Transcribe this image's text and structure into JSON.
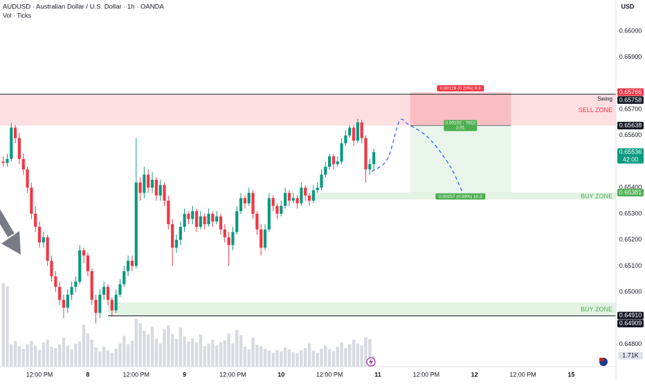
{
  "chart_data": {
    "type": "candlestick",
    "title": "AUDUSD · Australian Dollar / U.S. Dollar · 1h · OANDA",
    "subtitle": "Vol · Ticks",
    "currency": "USD",
    "up_color": "#089981",
    "down_color": "#f23645",
    "xlim": [
      -0.8,
      152.1
    ],
    "xticks": [
      {
        "value": 9,
        "label": "12:00 PM"
      },
      {
        "value": 21,
        "label": "8"
      },
      {
        "value": 33,
        "label": "12:00 PM"
      },
      {
        "value": 45,
        "label": "9"
      },
      {
        "value": 57,
        "label": "12:00 PM"
      },
      {
        "value": 69,
        "label": "10"
      },
      {
        "value": 81,
        "label": "12:00 PM"
      },
      {
        "value": 93,
        "label": "11"
      },
      {
        "value": 105,
        "label": "12:00 PM"
      },
      {
        "value": 117,
        "label": "12"
      },
      {
        "value": 129,
        "label": "12:00 PM"
      },
      {
        "value": 141,
        "label": "15"
      }
    ],
    "ylim": [
      0.64714,
      0.66119
    ],
    "yticks": [
      {
        "value": 0.66,
        "label": "0.66000"
      },
      {
        "value": 0.659,
        "label": "0.65900"
      },
      {
        "value": 0.657,
        "label": "0.65700"
      },
      {
        "value": 0.656,
        "label": "0.65600"
      },
      {
        "value": 0.654,
        "label": "0.65400"
      },
      {
        "value": 0.653,
        "label": "0.65300"
      },
      {
        "value": 0.652,
        "label": "0.65200"
      },
      {
        "value": 0.651,
        "label": "0.65100"
      },
      {
        "value": 0.65,
        "label": "0.65000"
      },
      {
        "value": 0.648,
        "label": "0.64800"
      }
    ],
    "grid": false,
    "candles": [
      [
        0.655,
        0.6552,
        0.6548,
        0.65495
      ],
      [
        0.65495,
        0.6553,
        0.6548,
        0.6551
      ],
      [
        0.6551,
        0.65648,
        0.655,
        0.6563
      ],
      [
        0.6563,
        0.6564,
        0.6557,
        0.6559
      ],
      [
        0.6559,
        0.6561,
        0.6549,
        0.6551
      ],
      [
        0.6551,
        0.6553,
        0.6545,
        0.6547
      ],
      [
        0.6547,
        0.6548,
        0.6538,
        0.654
      ],
      [
        0.654,
        0.6542,
        0.6528,
        0.653
      ],
      [
        0.653,
        0.6533,
        0.6523,
        0.6525
      ],
      [
        0.6525,
        0.6527,
        0.6517,
        0.6519
      ],
      [
        0.6519,
        0.6523,
        0.6517,
        0.6521
      ],
      [
        0.6521,
        0.6522,
        0.651,
        0.6512
      ],
      [
        0.6512,
        0.6514,
        0.6504,
        0.6506
      ],
      [
        0.6506,
        0.6508,
        0.65,
        0.6502
      ],
      [
        0.6502,
        0.6504,
        0.6495,
        0.6497
      ],
      [
        0.6497,
        0.6499,
        0.649,
        0.6494
      ],
      [
        0.6494,
        0.6501,
        0.6492,
        0.6499
      ],
      [
        0.6499,
        0.6504,
        0.6497,
        0.6502
      ],
      [
        0.6502,
        0.6506,
        0.65,
        0.6504
      ],
      [
        0.6504,
        0.6518,
        0.6503,
        0.6516
      ],
      [
        0.6516,
        0.6517,
        0.6511,
        0.6514
      ],
      [
        0.6514,
        0.6515,
        0.6506,
        0.6508
      ],
      [
        0.6508,
        0.6509,
        0.6495,
        0.6497
      ],
      [
        0.6497,
        0.6499,
        0.6488,
        0.6492
      ],
      [
        0.6492,
        0.6501,
        0.649,
        0.6499
      ],
      [
        0.6499,
        0.6504,
        0.6497,
        0.6502
      ],
      [
        0.6502,
        0.6503,
        0.6495,
        0.6497
      ],
      [
        0.6497,
        0.6498,
        0.64905,
        0.6493
      ],
      [
        0.6493,
        0.6501,
        0.6492,
        0.6499
      ],
      [
        0.6499,
        0.6505,
        0.6498,
        0.6503
      ],
      [
        0.6503,
        0.651,
        0.6502,
        0.6508
      ],
      [
        0.6508,
        0.6514,
        0.6506,
        0.6512
      ],
      [
        0.6512,
        0.6514,
        0.6508,
        0.651
      ],
      [
        0.651,
        0.6559,
        0.6509,
        0.6542
      ],
      [
        0.6542,
        0.6544,
        0.6535,
        0.6538
      ],
      [
        0.6538,
        0.6548,
        0.6536,
        0.6545
      ],
      [
        0.6545,
        0.6547,
        0.6538,
        0.654
      ],
      [
        0.654,
        0.6546,
        0.6538,
        0.6543
      ],
      [
        0.6543,
        0.6544,
        0.6535,
        0.6537
      ],
      [
        0.6537,
        0.6543,
        0.6535,
        0.6541
      ],
      [
        0.6541,
        0.6542,
        0.6533,
        0.6535
      ],
      [
        0.6535,
        0.6537,
        0.6524,
        0.6526
      ],
      [
        0.6526,
        0.6528,
        0.651,
        0.6517
      ],
      [
        0.6517,
        0.6522,
        0.6515,
        0.652
      ],
      [
        0.652,
        0.6527,
        0.6518,
        0.6525
      ],
      [
        0.6525,
        0.6532,
        0.6523,
        0.653
      ],
      [
        0.653,
        0.6531,
        0.6526,
        0.6528
      ],
      [
        0.6528,
        0.6533,
        0.6526,
        0.6531
      ],
      [
        0.6531,
        0.6532,
        0.6523,
        0.6525
      ],
      [
        0.6525,
        0.6531,
        0.6524,
        0.6529
      ],
      [
        0.6529,
        0.653,
        0.6524,
        0.6526
      ],
      [
        0.6526,
        0.6532,
        0.6525,
        0.653
      ],
      [
        0.653,
        0.6531,
        0.6525,
        0.6527
      ],
      [
        0.6527,
        0.6531,
        0.6526,
        0.6529
      ],
      [
        0.6529,
        0.653,
        0.6522,
        0.6524
      ],
      [
        0.6524,
        0.6526,
        0.6519,
        0.6521
      ],
      [
        0.6521,
        0.6523,
        0.651,
        0.6518
      ],
      [
        0.6518,
        0.6525,
        0.6516,
        0.6523
      ],
      [
        0.6523,
        0.6533,
        0.6522,
        0.6531
      ],
      [
        0.6531,
        0.6538,
        0.653,
        0.6536
      ],
      [
        0.6536,
        0.6537,
        0.6532,
        0.6534
      ],
      [
        0.6534,
        0.654,
        0.6533,
        0.6538
      ],
      [
        0.6538,
        0.6539,
        0.6528,
        0.653
      ],
      [
        0.653,
        0.6531,
        0.6522,
        0.6524
      ],
      [
        0.6524,
        0.6526,
        0.6514,
        0.6517
      ],
      [
        0.6517,
        0.6526,
        0.6516,
        0.6524
      ],
      [
        0.6524,
        0.6538,
        0.6523,
        0.6536
      ],
      [
        0.6536,
        0.6537,
        0.6531,
        0.6533
      ],
      [
        0.6533,
        0.6534,
        0.6528,
        0.653
      ],
      [
        0.653,
        0.6535,
        0.6529,
        0.6533
      ],
      [
        0.6533,
        0.654,
        0.6532,
        0.6538
      ],
      [
        0.6538,
        0.6539,
        0.6533,
        0.6535
      ],
      [
        0.6535,
        0.6538,
        0.6534,
        0.6536
      ],
      [
        0.6536,
        0.6537,
        0.6532,
        0.6534
      ],
      [
        0.6534,
        0.6542,
        0.6533,
        0.654
      ],
      [
        0.654,
        0.6541,
        0.6535,
        0.6537
      ],
      [
        0.6537,
        0.6538,
        0.6533,
        0.6535
      ],
      [
        0.6535,
        0.6541,
        0.6534,
        0.6539
      ],
      [
        0.6539,
        0.6542,
        0.6538,
        0.654
      ],
      [
        0.654,
        0.6547,
        0.6539,
        0.6545
      ],
      [
        0.6545,
        0.655,
        0.6544,
        0.6548
      ],
      [
        0.6548,
        0.6553,
        0.6547,
        0.6552
      ],
      [
        0.6552,
        0.6553,
        0.6547,
        0.6549
      ],
      [
        0.6549,
        0.6552,
        0.6548,
        0.655
      ],
      [
        0.655,
        0.6559,
        0.6549,
        0.6557
      ],
      [
        0.6557,
        0.6562,
        0.6556,
        0.656
      ],
      [
        0.656,
        0.6564,
        0.6559,
        0.6563
      ],
      [
        0.6563,
        0.6564,
        0.6556,
        0.6558
      ],
      [
        0.6558,
        0.65663,
        0.6557,
        0.6565
      ],
      [
        0.6565,
        0.6566,
        0.6557,
        0.6559
      ],
      [
        0.6559,
        0.656,
        0.6542,
        0.6547
      ],
      [
        0.6547,
        0.6551,
        0.6545,
        0.6549
      ],
      [
        0.6549,
        0.6555,
        0.6547,
        0.65536
      ]
    ],
    "volume": {
      "color": "#d1d4dc",
      "ylim": [
        0,
        14000
      ],
      "values": [
        13000,
        12500,
        3500,
        4000,
        3200,
        2800,
        3500,
        4000,
        3300,
        2600,
        3800,
        4200,
        3100,
        2900,
        3500,
        4500,
        3300,
        2700,
        3600,
        3900,
        6500,
        5200,
        4200,
        3000,
        2400,
        3100,
        2500,
        2200,
        2800,
        3600,
        4800,
        3500,
        4000,
        7400,
        6800,
        5600,
        5000,
        6200,
        4400,
        3600,
        5800,
        6400,
        5100,
        4300,
        6100,
        4700,
        3900,
        4400,
        3800,
        5000,
        3200,
        3600,
        4200,
        3300,
        3800,
        4100,
        5200,
        3600,
        5700,
        4900,
        3100,
        2700,
        4500,
        3400,
        3200,
        2800,
        2500,
        2200,
        2600,
        2400,
        3000,
        2700,
        2300,
        2100,
        2600,
        2900,
        3600,
        2500,
        2200,
        2800,
        3300,
        2700,
        2400,
        3100,
        3800,
        2900,
        3500,
        4200,
        3600,
        3300,
        4600,
        4300,
        1710
      ],
      "value_labels": {
        "92": "1.71K"
      }
    },
    "price_labels": [
      {
        "value": 0.65766,
        "label": "0.65766",
        "color": "#f23645"
      },
      {
        "value": 0.65758,
        "label": "0.65758",
        "color": "#131722"
      },
      {
        "value": 0.65638,
        "label": "0.65638",
        "color": "#131722"
      },
      {
        "value": 0.65536,
        "label": "0.65536",
        "color": "#089981",
        "countdown": "42:00"
      },
      {
        "value": 0.65381,
        "label": "0.65381",
        "color": "#4caf50"
      },
      {
        "value": 0.6491,
        "label": "0.64910",
        "color": "#131722"
      },
      {
        "value": 0.64909,
        "label": "0.64909",
        "color": "#131722"
      }
    ],
    "swing": {
      "label": "Swing",
      "value": 0.65758
    },
    "sell_zone": {
      "label": "SELL ZONE",
      "top": 0.65758,
      "bottom": 0.65638,
      "color": "#f23645"
    },
    "buy_zones": [
      {
        "label": "BUY ZONE",
        "top": 0.65381,
        "bottom": 0.65355,
        "start": 77,
        "color": "#4caf50"
      },
      {
        "label": "BUY ZONE",
        "top": 0.6496,
        "bottom": 0.64909,
        "start": 26,
        "color": "#4caf50"
      }
    ],
    "position": {
      "start": 101,
      "end": 126,
      "entry": 0.65638,
      "stop": 0.65766,
      "target": 0.65381,
      "stop_label": "0.00128 (0.20%) 9.9",
      "entry_label": "0.00102 - 7812",
      "ratio_label": "2.01",
      "target_label": "0.00257 (0.39%) 10.2"
    },
    "projection": {
      "color": "#2962ff",
      "x": [
        91.5,
        95.4,
        98.3,
        100.6,
        105.7,
        110.9,
        114
      ],
      "y": [
        0.65462,
        0.6551,
        0.65653,
        0.65642,
        0.65589,
        0.65483,
        0.65382
      ]
    }
  }
}
